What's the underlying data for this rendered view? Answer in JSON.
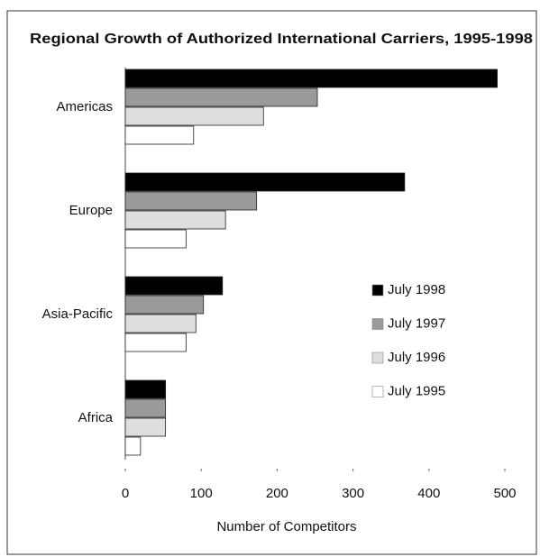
{
  "chart_data": {
    "type": "hbar",
    "title": "Regional Growth of Authorized International Carriers, 1995-1998",
    "categories": [
      "Americas",
      "Europe",
      "Asia-Pacific",
      "Africa"
    ],
    "series": [
      {
        "name": "July 1998",
        "color": "#000000",
        "values": [
          490,
          368,
          128,
          53
        ]
      },
      {
        "name": "July 1997",
        "color": "#9a9a9a",
        "values": [
          253,
          173,
          103,
          53
        ]
      },
      {
        "name": "July 1996",
        "color": "#dedede",
        "values": [
          182,
          132,
          93,
          53
        ]
      },
      {
        "name": "July 1995",
        "color": "#ffffff",
        "values": [
          90,
          80,
          80,
          20
        ]
      }
    ],
    "xlabel": "Number of Competitors",
    "xlim": [
      0,
      500
    ],
    "xticks": [
      0,
      100,
      200,
      300,
      400,
      500
    ]
  }
}
